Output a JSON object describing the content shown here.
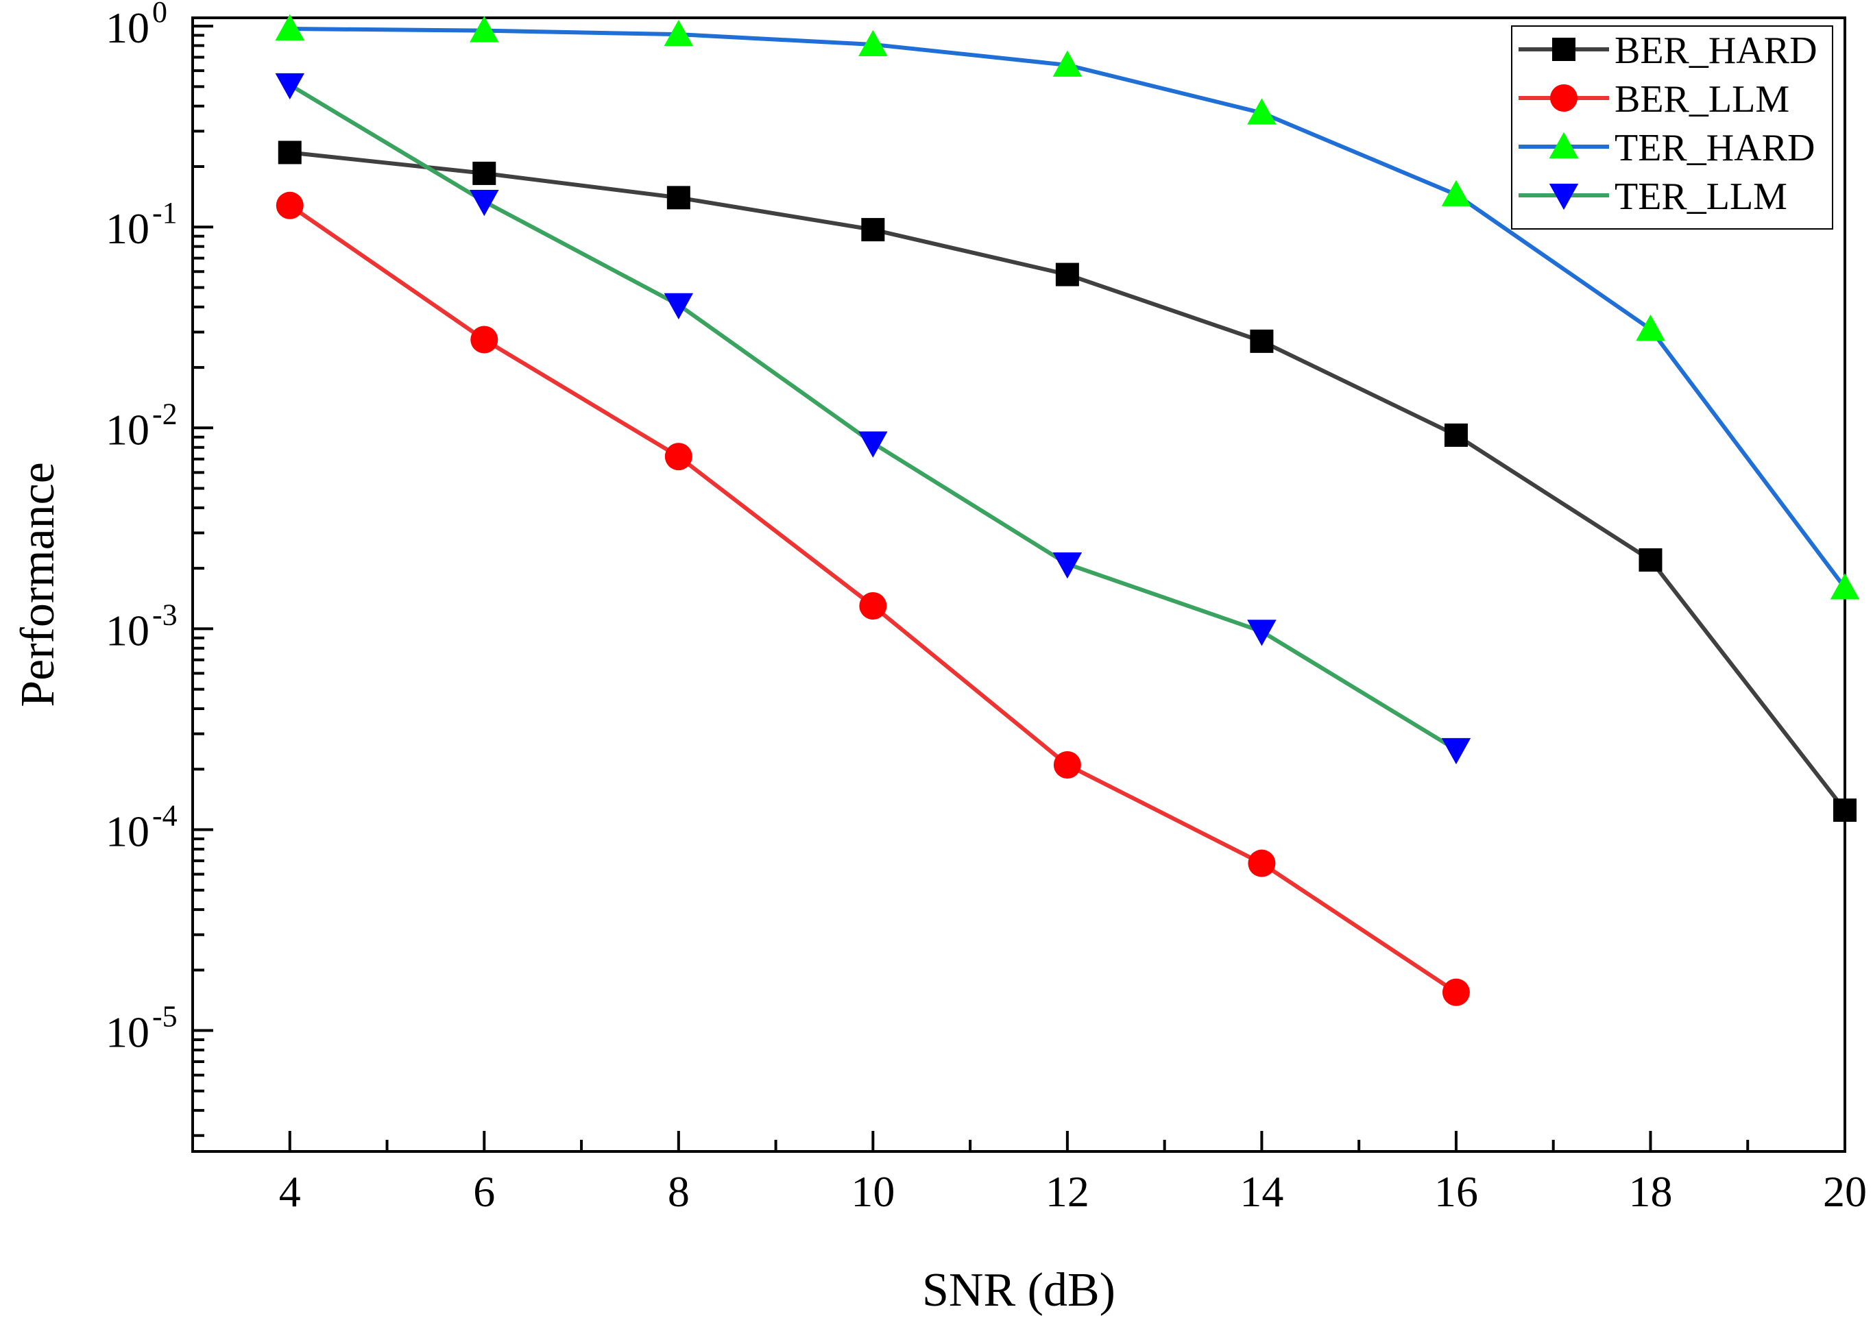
{
  "chart_data": {
    "type": "line",
    "xlabel": "SNR (dB)",
    "ylabel": "Performance",
    "y_scale": "log",
    "xlim": [
      3,
      20
    ],
    "ylim": [
      2.5e-06,
      1.1
    ],
    "x_ticks": [
      4,
      6,
      8,
      10,
      12,
      14,
      16,
      18,
      20
    ],
    "x_tick_labels": [
      "4",
      "6",
      "8",
      "10",
      "12",
      "14",
      "16",
      "18",
      "20"
    ],
    "y_ticks": [
      {
        "value": 1,
        "base": "10",
        "exp": "0"
      },
      {
        "value": 0.1,
        "base": "10",
        "exp": "-1"
      },
      {
        "value": 0.01,
        "base": "10",
        "exp": "-2"
      },
      {
        "value": 0.001,
        "base": "10",
        "exp": "-3"
      },
      {
        "value": 0.0001,
        "base": "10",
        "exp": "-4"
      },
      {
        "value": 1e-05,
        "base": "10",
        "exp": "-5"
      }
    ],
    "legend_position": "top-right",
    "series": [
      {
        "name": "BER_HARD",
        "color": "#404040",
        "marker": "square",
        "marker_color": "#000000",
        "x": [
          4,
          6,
          8,
          10,
          12,
          14,
          16,
          18,
          20
        ],
        "values": [
          0.235,
          0.185,
          0.14,
          0.097,
          0.058,
          0.027,
          0.0092,
          0.0022,
          0.000125
        ]
      },
      {
        "name": "BER_LLM",
        "color": "#ee3333",
        "marker": "circle",
        "marker_color": "#ff0000",
        "x": [
          4,
          6,
          8,
          10,
          12,
          14,
          16
        ],
        "values": [
          0.128,
          0.0275,
          0.0072,
          0.0013,
          0.00021,
          6.8e-05,
          1.55e-05
        ]
      },
      {
        "name": "TER_HARD",
        "color": "#1f6fd6",
        "marker": "triangle-up",
        "marker_color": "#00ff00",
        "x": [
          4,
          6,
          8,
          10,
          12,
          14,
          16,
          18,
          20
        ],
        "values": [
          0.97,
          0.95,
          0.91,
          0.81,
          0.64,
          0.37,
          0.145,
          0.031,
          0.0016
        ]
      },
      {
        "name": "TER_LLM",
        "color": "#3aa35f",
        "marker": "triangle-down",
        "marker_color": "#0000ff",
        "x": [
          4,
          6,
          8,
          10,
          12,
          14,
          16
        ],
        "values": [
          0.51,
          0.134,
          0.041,
          0.0084,
          0.0021,
          0.00097,
          0.00025
        ]
      }
    ]
  }
}
